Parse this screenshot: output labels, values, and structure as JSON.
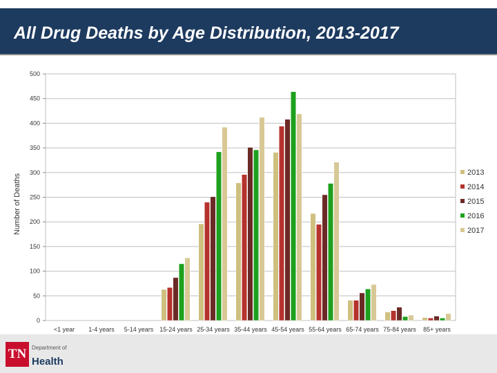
{
  "header": {
    "title": "All Drug Deaths by Age Distribution, 2013-2017"
  },
  "logo": {
    "abbr": "TN",
    "dept": "Department of",
    "name": "Health"
  },
  "chart_data": {
    "type": "bar",
    "title": "All Drug Deaths by Age Distribution, 2013-2017",
    "ylabel": "Number of Deaths",
    "xlabel": "",
    "ylim": [
      0,
      500
    ],
    "yticks": [
      0,
      50,
      100,
      150,
      200,
      250,
      300,
      350,
      400,
      450,
      500
    ],
    "categories": [
      "<1 year",
      "1-4 years",
      "5-14 years",
      "15-24 years",
      "25-34 years",
      "35-44 years",
      "45-54 years",
      "55-64 years",
      "65-74 years",
      "75-84 years",
      "85+ years"
    ],
    "series": [
      {
        "name": "2013",
        "color": "#cfc080",
        "values": [
          0,
          0,
          0,
          63,
          196,
          279,
          341,
          217,
          41,
          17,
          6
        ]
      },
      {
        "name": "2014",
        "color": "#b5332d",
        "values": [
          0,
          0,
          0,
          67,
          240,
          296,
          394,
          195,
          41,
          20,
          5
        ]
      },
      {
        "name": "2015",
        "color": "#6b2a26",
        "values": [
          0,
          0,
          0,
          87,
          251,
          351,
          408,
          255,
          56,
          27,
          9
        ]
      },
      {
        "name": "2016",
        "color": "#1ea01e",
        "values": [
          0,
          0,
          0,
          115,
          342,
          346,
          464,
          278,
          64,
          8,
          5
        ]
      },
      {
        "name": "2017",
        "color": "#d8c896",
        "values": [
          0,
          0,
          0,
          127,
          392,
          412,
          419,
          321,
          73,
          11,
          14
        ]
      }
    ],
    "legend": "right",
    "grid": true
  }
}
